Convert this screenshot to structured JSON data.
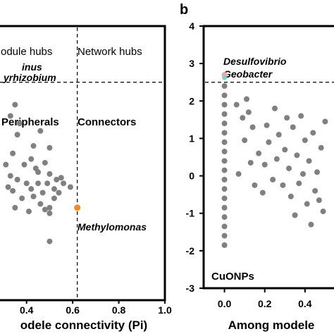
{
  "chart_data": [
    {
      "panel": "a",
      "type": "scatter",
      "xlabel": "odele connectivity (Pi)",
      "ylabel": "",
      "xlim": [
        0.3,
        1.0
      ],
      "ylim": [
        -3.0,
        4.0
      ],
      "x_ticks": [
        "0.4",
        "0.6",
        "0.8",
        "1.0"
      ],
      "x_tick_values": [
        0.4,
        0.6,
        0.8,
        1.0
      ],
      "thresholds": {
        "x": 0.62,
        "y": 2.5
      },
      "regions": [
        {
          "label": "odule hubs"
        },
        {
          "label": "Network hubs"
        },
        {
          "label": "Peripherals"
        },
        {
          "label": "Connectors"
        }
      ],
      "annotations": [
        {
          "label": "inus",
          "x": 0.35,
          "y": 2.7
        },
        {
          "label": "yrhizobium",
          "x": 0.33,
          "y": 2.5
        },
        {
          "label": "Methylomonas",
          "x": 0.62,
          "y": -0.85,
          "color": "#f28a22"
        }
      ],
      "colors": {
        "points": "#808080",
        "methylomonas": "#f28a22"
      },
      "points": [
        [
          0.35,
          1.9
        ],
        [
          0.33,
          1.6
        ],
        [
          0.37,
          1.4
        ],
        [
          0.36,
          1.1
        ],
        [
          0.34,
          0.6
        ],
        [
          0.43,
          0.8
        ],
        [
          0.46,
          1.2
        ],
        [
          0.5,
          0.75
        ],
        [
          0.42,
          0.45
        ],
        [
          0.39,
          0.3
        ],
        [
          0.45,
          0.1
        ],
        [
          0.48,
          0.35
        ],
        [
          0.5,
          0.05
        ],
        [
          0.53,
          -0.1
        ],
        [
          0.56,
          -0.2
        ],
        [
          0.59,
          -0.3
        ],
        [
          0.33,
          0.0
        ],
        [
          0.36,
          -0.1
        ],
        [
          0.4,
          -0.2
        ],
        [
          0.42,
          -0.35
        ],
        [
          0.45,
          -0.2
        ],
        [
          0.47,
          -0.45
        ],
        [
          0.49,
          -0.2
        ],
        [
          0.52,
          -0.35
        ],
        [
          0.54,
          -0.45
        ],
        [
          0.43,
          -0.55
        ],
        [
          0.46,
          -0.75
        ],
        [
          0.48,
          -0.9
        ],
        [
          0.5,
          -0.85
        ],
        [
          0.5,
          -1.0
        ],
        [
          0.38,
          -0.6
        ],
        [
          0.34,
          -0.4
        ],
        [
          0.35,
          -0.85
        ],
        [
          0.41,
          -0.95
        ],
        [
          0.5,
          -1.75
        ],
        [
          0.52,
          -0.6
        ],
        [
          0.31,
          0.3
        ],
        [
          0.32,
          -0.3
        ],
        [
          0.44,
          0.2
        ],
        [
          0.55,
          -0.05
        ]
      ]
    },
    {
      "panel": "b",
      "type": "scatter",
      "xlabel": "Among modele",
      "ylabel": "",
      "xlim": [
        -0.1,
        0.6
      ],
      "ylim": [
        -3.0,
        4.0
      ],
      "x_ticks": [
        "0.0",
        "0.2",
        "0.4"
      ],
      "x_tick_values": [
        0.0,
        0.2,
        0.4
      ],
      "y_ticks": [
        "4",
        "3",
        "2",
        "1",
        "0",
        "-1",
        "-2",
        "-3"
      ],
      "y_tick_values": [
        4,
        3,
        2,
        1,
        0,
        -1,
        -2,
        -3
      ],
      "threshold_y": 2.5,
      "annotations": [
        {
          "label": "Desulfovibrio",
          "x": 0.0,
          "y": 2.7,
          "color": "#f4a6a0"
        },
        {
          "label": "Geobacter",
          "x": 0.0,
          "y": 2.62,
          "color": "#6fd6d6"
        },
        {
          "label": "CuONPs"
        }
      ],
      "colors": {
        "points": "#808080",
        "desulfovibrio": "#f4a6a0",
        "geobacter": "#6fd6d6"
      },
      "points": [
        [
          0.0,
          2.4
        ],
        [
          0.0,
          2.15
        ],
        [
          0.0,
          1.9
        ],
        [
          0.0,
          1.65
        ],
        [
          0.0,
          1.4
        ],
        [
          0.0,
          1.15
        ],
        [
          0.0,
          0.9
        ],
        [
          0.0,
          0.65
        ],
        [
          0.0,
          0.4
        ],
        [
          0.0,
          0.15
        ],
        [
          0.0,
          -0.1
        ],
        [
          0.0,
          -0.35
        ],
        [
          0.0,
          -0.6
        ],
        [
          0.0,
          -0.85
        ],
        [
          0.0,
          -1.1
        ],
        [
          0.0,
          -1.35
        ],
        [
          0.0,
          -1.6
        ],
        [
          0.0,
          -1.85
        ],
        [
          0.06,
          1.9
        ],
        [
          0.09,
          1.55
        ],
        [
          0.11,
          2.05
        ],
        [
          0.12,
          1.7
        ],
        [
          0.14,
          1.3
        ],
        [
          0.1,
          0.95
        ],
        [
          0.13,
          0.35
        ],
        [
          0.07,
          0.05
        ],
        [
          0.17,
          0.6
        ],
        [
          0.2,
          0.3
        ],
        [
          0.22,
          0.9
        ],
        [
          0.25,
          1.8
        ],
        [
          0.27,
          1.1
        ],
        [
          0.3,
          0.7
        ],
        [
          0.32,
          0.2
        ],
        [
          0.34,
          1.3
        ],
        [
          0.36,
          0.55
        ],
        [
          0.38,
          1.6
        ],
        [
          0.4,
          0.95
        ],
        [
          0.42,
          0.4
        ],
        [
          0.44,
          1.15
        ],
        [
          0.46,
          0.1
        ],
        [
          0.48,
          0.75
        ],
        [
          0.5,
          1.45
        ],
        [
          0.29,
          -0.25
        ],
        [
          0.33,
          -0.55
        ],
        [
          0.37,
          -0.2
        ],
        [
          0.41,
          -0.75
        ],
        [
          0.45,
          -0.4
        ],
        [
          0.49,
          -0.95
        ],
        [
          0.24,
          -0.1
        ],
        [
          0.19,
          -0.45
        ],
        [
          0.15,
          -0.25
        ],
        [
          0.35,
          -1.05
        ],
        [
          0.43,
          -1.3
        ],
        [
          0.47,
          -0.65
        ],
        [
          0.39,
          0.05
        ],
        [
          0.31,
          1.55
        ],
        [
          0.26,
          0.45
        ],
        [
          0.21,
          1.35
        ]
      ]
    }
  ],
  "panel_b_letter": "b"
}
